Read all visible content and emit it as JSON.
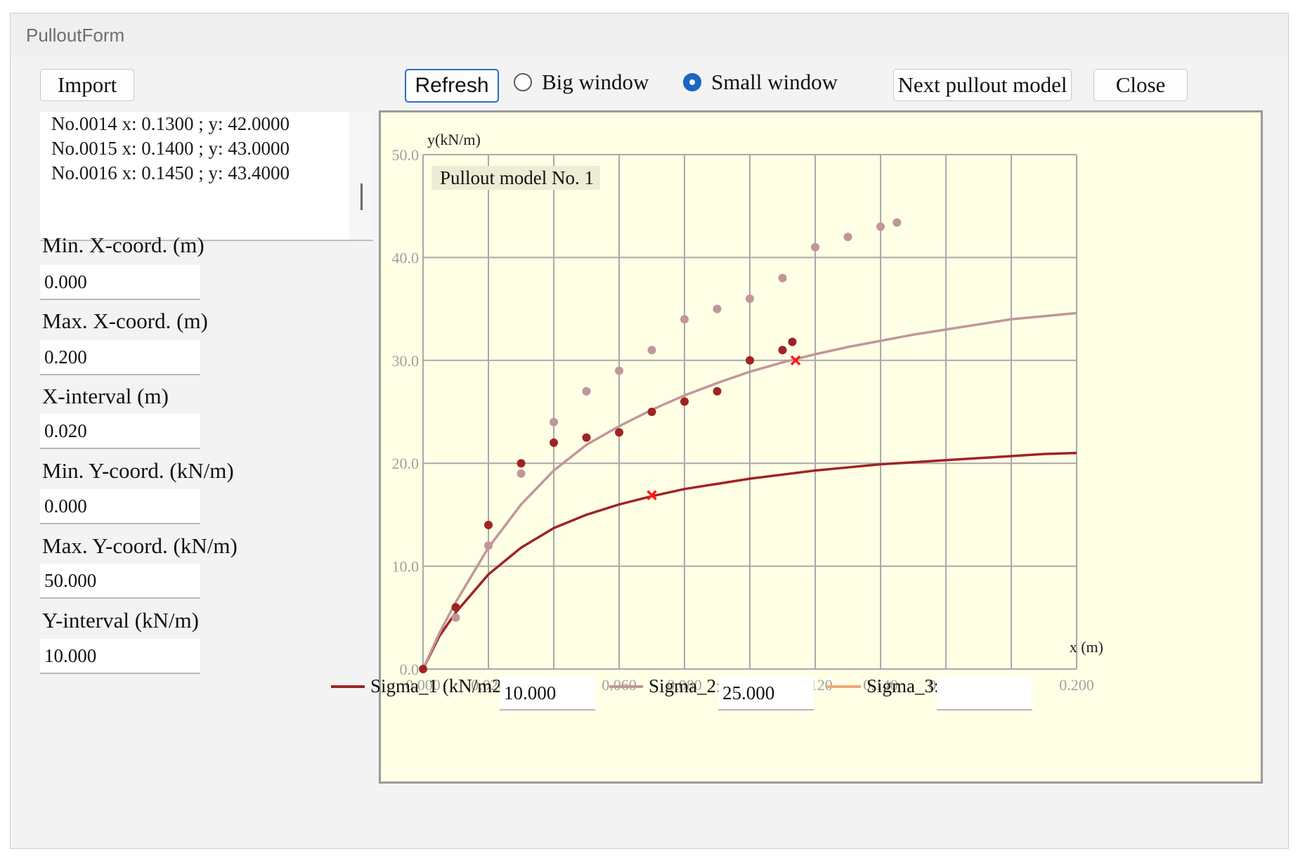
{
  "window": {
    "title": "PulloutForm"
  },
  "toolbar": {
    "import_label": "Import",
    "refresh_label": "Refresh",
    "big_window_label": "Big window",
    "small_window_label": "Small window",
    "window_mode_selected": "Small window",
    "next_model_label": "Next pullout model",
    "close_label": "Close"
  },
  "log": {
    "lines": [
      "No.0014 x: 0.1300 ; y: 42.0000",
      "No.0015 x: 0.1400 ; y: 43.0000",
      "No.0016 x: 0.1450 ; y: 43.4000"
    ]
  },
  "fields": [
    {
      "label": "Min. X-coord.  (m)",
      "value": "0.000"
    },
    {
      "label": "Max. X-coord.  (m)",
      "value": "0.200"
    },
    {
      "label": "X-interval  (m)",
      "value": "0.020"
    },
    {
      "label": "Min. Y-coord. (kN/m)",
      "value": "0.000"
    },
    {
      "label": "Max. Y-coord. (kN/m)",
      "value": "50.000"
    },
    {
      "label": "Y-interval (kN/m)",
      "value": "10.000"
    }
  ],
  "legend": [
    {
      "label": "Sigma_1 (kN/m2) :",
      "value": "10.000",
      "color": "#a02323"
    },
    {
      "label": "Sigma_2:",
      "value": "25.000",
      "color": "#c0969b"
    },
    {
      "label": "Sigma_3:",
      "value": "",
      "color": "#f0a878"
    }
  ],
  "colors": {
    "plot_background": "#ffffe6",
    "grid": "#a9a9a9",
    "sigma1": "#a02323",
    "sigma2": "#c0969b",
    "marker": "#ff1a1a"
  },
  "chart_data": {
    "type": "line",
    "annotation": "Pullout model No. 1",
    "xlabel": "x (m)",
    "ylabel": "y(kN/m)",
    "xlim": [
      0,
      0.2
    ],
    "ylim": [
      0,
      50
    ],
    "x_ticks": [
      "0.000",
      "0.020",
      "0.040",
      "0.060",
      "0.080",
      "0.100",
      "0.120",
      "0.140",
      "0.160",
      "0.180",
      "0.200"
    ],
    "y_ticks": [
      "0.0",
      "10.0",
      "20.0",
      "30.0",
      "40.0",
      "50.0"
    ],
    "grid": true,
    "series": [
      {
        "name": "Sigma_1 (kN/m2) :",
        "kind": "line",
        "color": "#a02323",
        "x": [
          0,
          0.005,
          0.01,
          0.02,
          0.03,
          0.04,
          0.05,
          0.06,
          0.07,
          0.08,
          0.09,
          0.1,
          0.11,
          0.12,
          0.13,
          0.14,
          0.15,
          0.16,
          0.17,
          0.18,
          0.19,
          0.2
        ],
        "y": [
          0,
          3.2,
          5.5,
          9.2,
          11.8,
          13.7,
          15.0,
          16.0,
          16.8,
          17.5,
          18.0,
          18.5,
          18.9,
          19.3,
          19.6,
          19.9,
          20.1,
          20.3,
          20.5,
          20.7,
          20.9,
          21.0
        ]
      },
      {
        "name": "Sigma_2:",
        "kind": "line",
        "color": "#c0969b",
        "x": [
          0,
          0.005,
          0.01,
          0.02,
          0.03,
          0.04,
          0.05,
          0.06,
          0.07,
          0.08,
          0.09,
          0.1,
          0.11,
          0.12,
          0.13,
          0.14,
          0.15,
          0.16,
          0.17,
          0.18,
          0.19,
          0.2
        ],
        "y": [
          0,
          3.5,
          6.5,
          11.8,
          16.0,
          19.3,
          21.8,
          23.6,
          25.2,
          26.6,
          27.8,
          28.9,
          29.8,
          30.6,
          31.3,
          31.9,
          32.5,
          33.0,
          33.5,
          34.0,
          34.3,
          34.6
        ]
      },
      {
        "kind": "points",
        "color": "#a02323",
        "x": [
          0,
          0.01,
          0.02,
          0.03,
          0.04,
          0.05,
          0.06,
          0.07,
          0.08,
          0.09,
          0.1,
          0.11,
          0.113
        ],
        "y": [
          0,
          6,
          14,
          20,
          22,
          22.5,
          23,
          25,
          26,
          27,
          30,
          31,
          31.8
        ]
      },
      {
        "kind": "points",
        "color": "#c0969b",
        "x": [
          0.01,
          0.02,
          0.03,
          0.04,
          0.05,
          0.06,
          0.07,
          0.08,
          0.09,
          0.1,
          0.11,
          0.12,
          0.13,
          0.14,
          0.145
        ],
        "y": [
          5,
          12,
          19,
          24,
          27,
          29,
          31,
          34,
          35,
          36,
          38,
          41,
          42,
          43,
          43.4
        ]
      },
      {
        "kind": "markers",
        "color": "#ff1a1a",
        "x": [
          0.07,
          0.114
        ],
        "y": [
          16.9,
          30
        ]
      }
    ]
  }
}
